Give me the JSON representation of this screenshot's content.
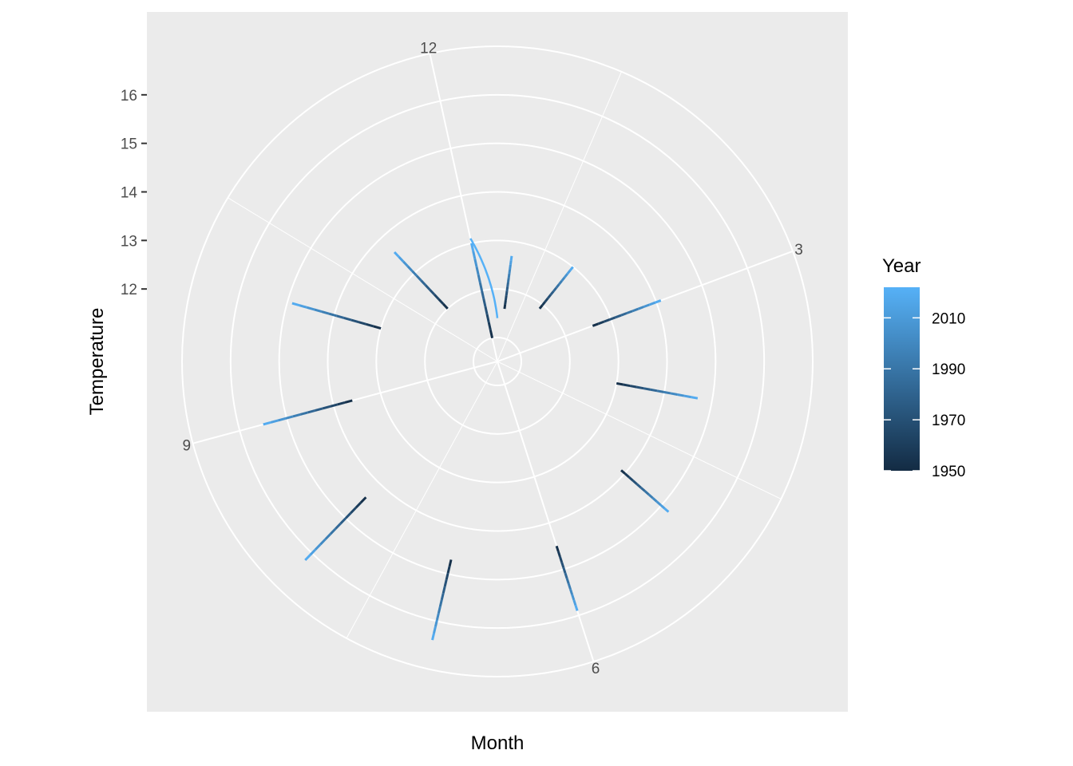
{
  "chart_data": {
    "type": "line",
    "coord": "polar",
    "xlabel": "Month",
    "ylabel": "Temperature",
    "x_ticks": [
      "3",
      "6",
      "9",
      "12"
    ],
    "x_tick_values": [
      3,
      6,
      9,
      12
    ],
    "x_range": [
      0.75,
      12.4
    ],
    "y_ticks": [
      "12",
      "13",
      "14",
      "15",
      "16"
    ],
    "y_tick_values": [
      12,
      13,
      14,
      15,
      16
    ],
    "y_range": [
      11.0,
      17.0
    ],
    "legend": {
      "title": "Year",
      "labels": [
        "1950",
        "1970",
        "1990",
        "2010"
      ],
      "values": [
        1950,
        1970,
        1990,
        2010
      ],
      "range": [
        1950,
        2022
      ],
      "color_low": "#132B43",
      "color_high": "#56B1F7",
      "placement": "right"
    },
    "grid": true,
    "series": [
      {
        "month": 1,
        "start": [
          1950,
          11.6
        ],
        "end": [
          2022,
          12.7
        ]
      },
      {
        "month": 2,
        "start": [
          1950,
          11.9
        ],
        "end": [
          2022,
          13.0
        ]
      },
      {
        "month": 3,
        "start": [
          1950,
          12.6
        ],
        "end": [
          2022,
          14.1
        ]
      },
      {
        "month": 4,
        "start": [
          1950,
          13.0
        ],
        "end": [
          2022,
          14.7
        ]
      },
      {
        "month": 5,
        "start": [
          1950,
          13.9
        ],
        "end": [
          2022,
          15.2
        ]
      },
      {
        "month": 6,
        "start": [
          1950,
          14.5
        ],
        "end": [
          2022,
          15.9
        ]
      },
      {
        "month": 7,
        "start": [
          1950,
          14.7
        ],
        "end": [
          2022,
          16.4
        ]
      },
      {
        "month": 8,
        "start": [
          1950,
          14.4
        ],
        "end": [
          2022,
          16.2
        ]
      },
      {
        "month": 9,
        "start": [
          1950,
          13.6
        ],
        "end": [
          2022,
          15.5
        ]
      },
      {
        "month": 10,
        "start": [
          1950,
          13.0
        ],
        "end": [
          2022,
          14.9
        ]
      },
      {
        "month": 11,
        "start": [
          1950,
          12.0
        ],
        "end": [
          2022,
          13.6
        ]
      },
      {
        "month": 12,
        "start": [
          1950,
          11.0
        ],
        "end": [
          2022,
          13.0
        ]
      }
    ],
    "wrap_segment": {
      "from_month": 12.0,
      "from_temp": 13.1,
      "to_month": 12.4,
      "to_temp": 11.4
    }
  }
}
